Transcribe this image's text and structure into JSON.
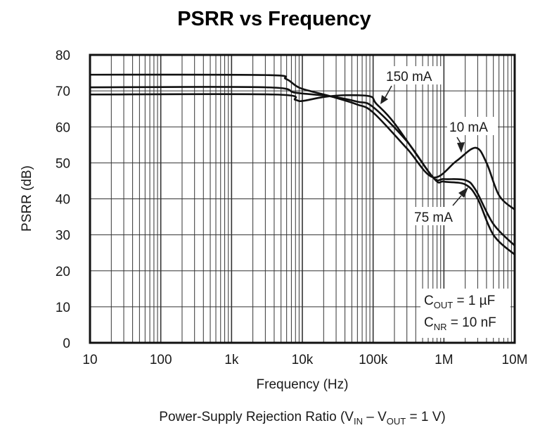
{
  "chart_data": {
    "type": "line",
    "title": "PSRR vs Frequency",
    "xlabel": "Frequency (Hz)",
    "ylabel": "PSRR (dB)",
    "caption": {
      "prefix": "Power-Supply Rejection Ratio (V",
      "sub1": "IN",
      "mid": " – V",
      "sub2": "OUT",
      "suffix": " = 1 V)"
    },
    "xscale": "log",
    "xlim": [
      10,
      10000000
    ],
    "ylim": [
      0,
      80
    ],
    "grid": true,
    "x_tick_values": [
      10,
      100,
      1000,
      10000,
      100000,
      1000000,
      10000000
    ],
    "x_tick_labels": [
      "10",
      "100",
      "1k",
      "10k",
      "100k",
      "1M",
      "10M"
    ],
    "y_tick_values": [
      0,
      10,
      20,
      30,
      40,
      50,
      60,
      70,
      80
    ],
    "y_tick_labels": [
      "0",
      "10",
      "20",
      "30",
      "40",
      "50",
      "60",
      "70",
      "80"
    ],
    "conditions": [
      {
        "main": "C",
        "sub": "OUT",
        "rest": " = 1 µF"
      },
      {
        "main": "C",
        "sub": "NR",
        "rest": " = 10 nF"
      }
    ],
    "line_color": "#111111",
    "series": [
      {
        "name": "10 mA",
        "x": [
          10,
          3000,
          5900,
          9300,
          25000,
          58000,
          100000,
          300000,
          700000,
          1500000,
          2800000,
          4000000,
          6000000,
          10000000
        ],
        "y": [
          74.5,
          74.4,
          73.3,
          70.8,
          68.5,
          66.3,
          64,
          54,
          46,
          50.5,
          54.2,
          50,
          41,
          37
        ]
      },
      {
        "name": "75 mA",
        "x": [
          10,
          3000,
          8000,
          25000,
          60000,
          100000,
          300000,
          700000,
          1000000,
          2000000,
          2800000,
          5000000,
          10000000
        ],
        "y": [
          71,
          71,
          69.5,
          68.5,
          67,
          65.5,
          56,
          46,
          45.5,
          45.2,
          42.5,
          33,
          27
        ]
      },
      {
        "name": "150 mA",
        "x": [
          10,
          4000,
          8000,
          10000,
          20000,
          40000,
          90000,
          110000,
          200000,
          700000,
          1000000,
          2000000,
          3000000,
          5000000,
          10000000
        ],
        "y": [
          69,
          69,
          67.5,
          67.2,
          68.3,
          68.8,
          68.5,
          66.5,
          61,
          46,
          44.8,
          44,
          40,
          30,
          24.5
        ]
      }
    ],
    "annotations": [
      {
        "text": "150 mA",
        "series": "150 mA"
      },
      {
        "text": "10 mA",
        "series": "10 mA"
      },
      {
        "text": "75 mA",
        "series": "75 mA"
      }
    ]
  }
}
